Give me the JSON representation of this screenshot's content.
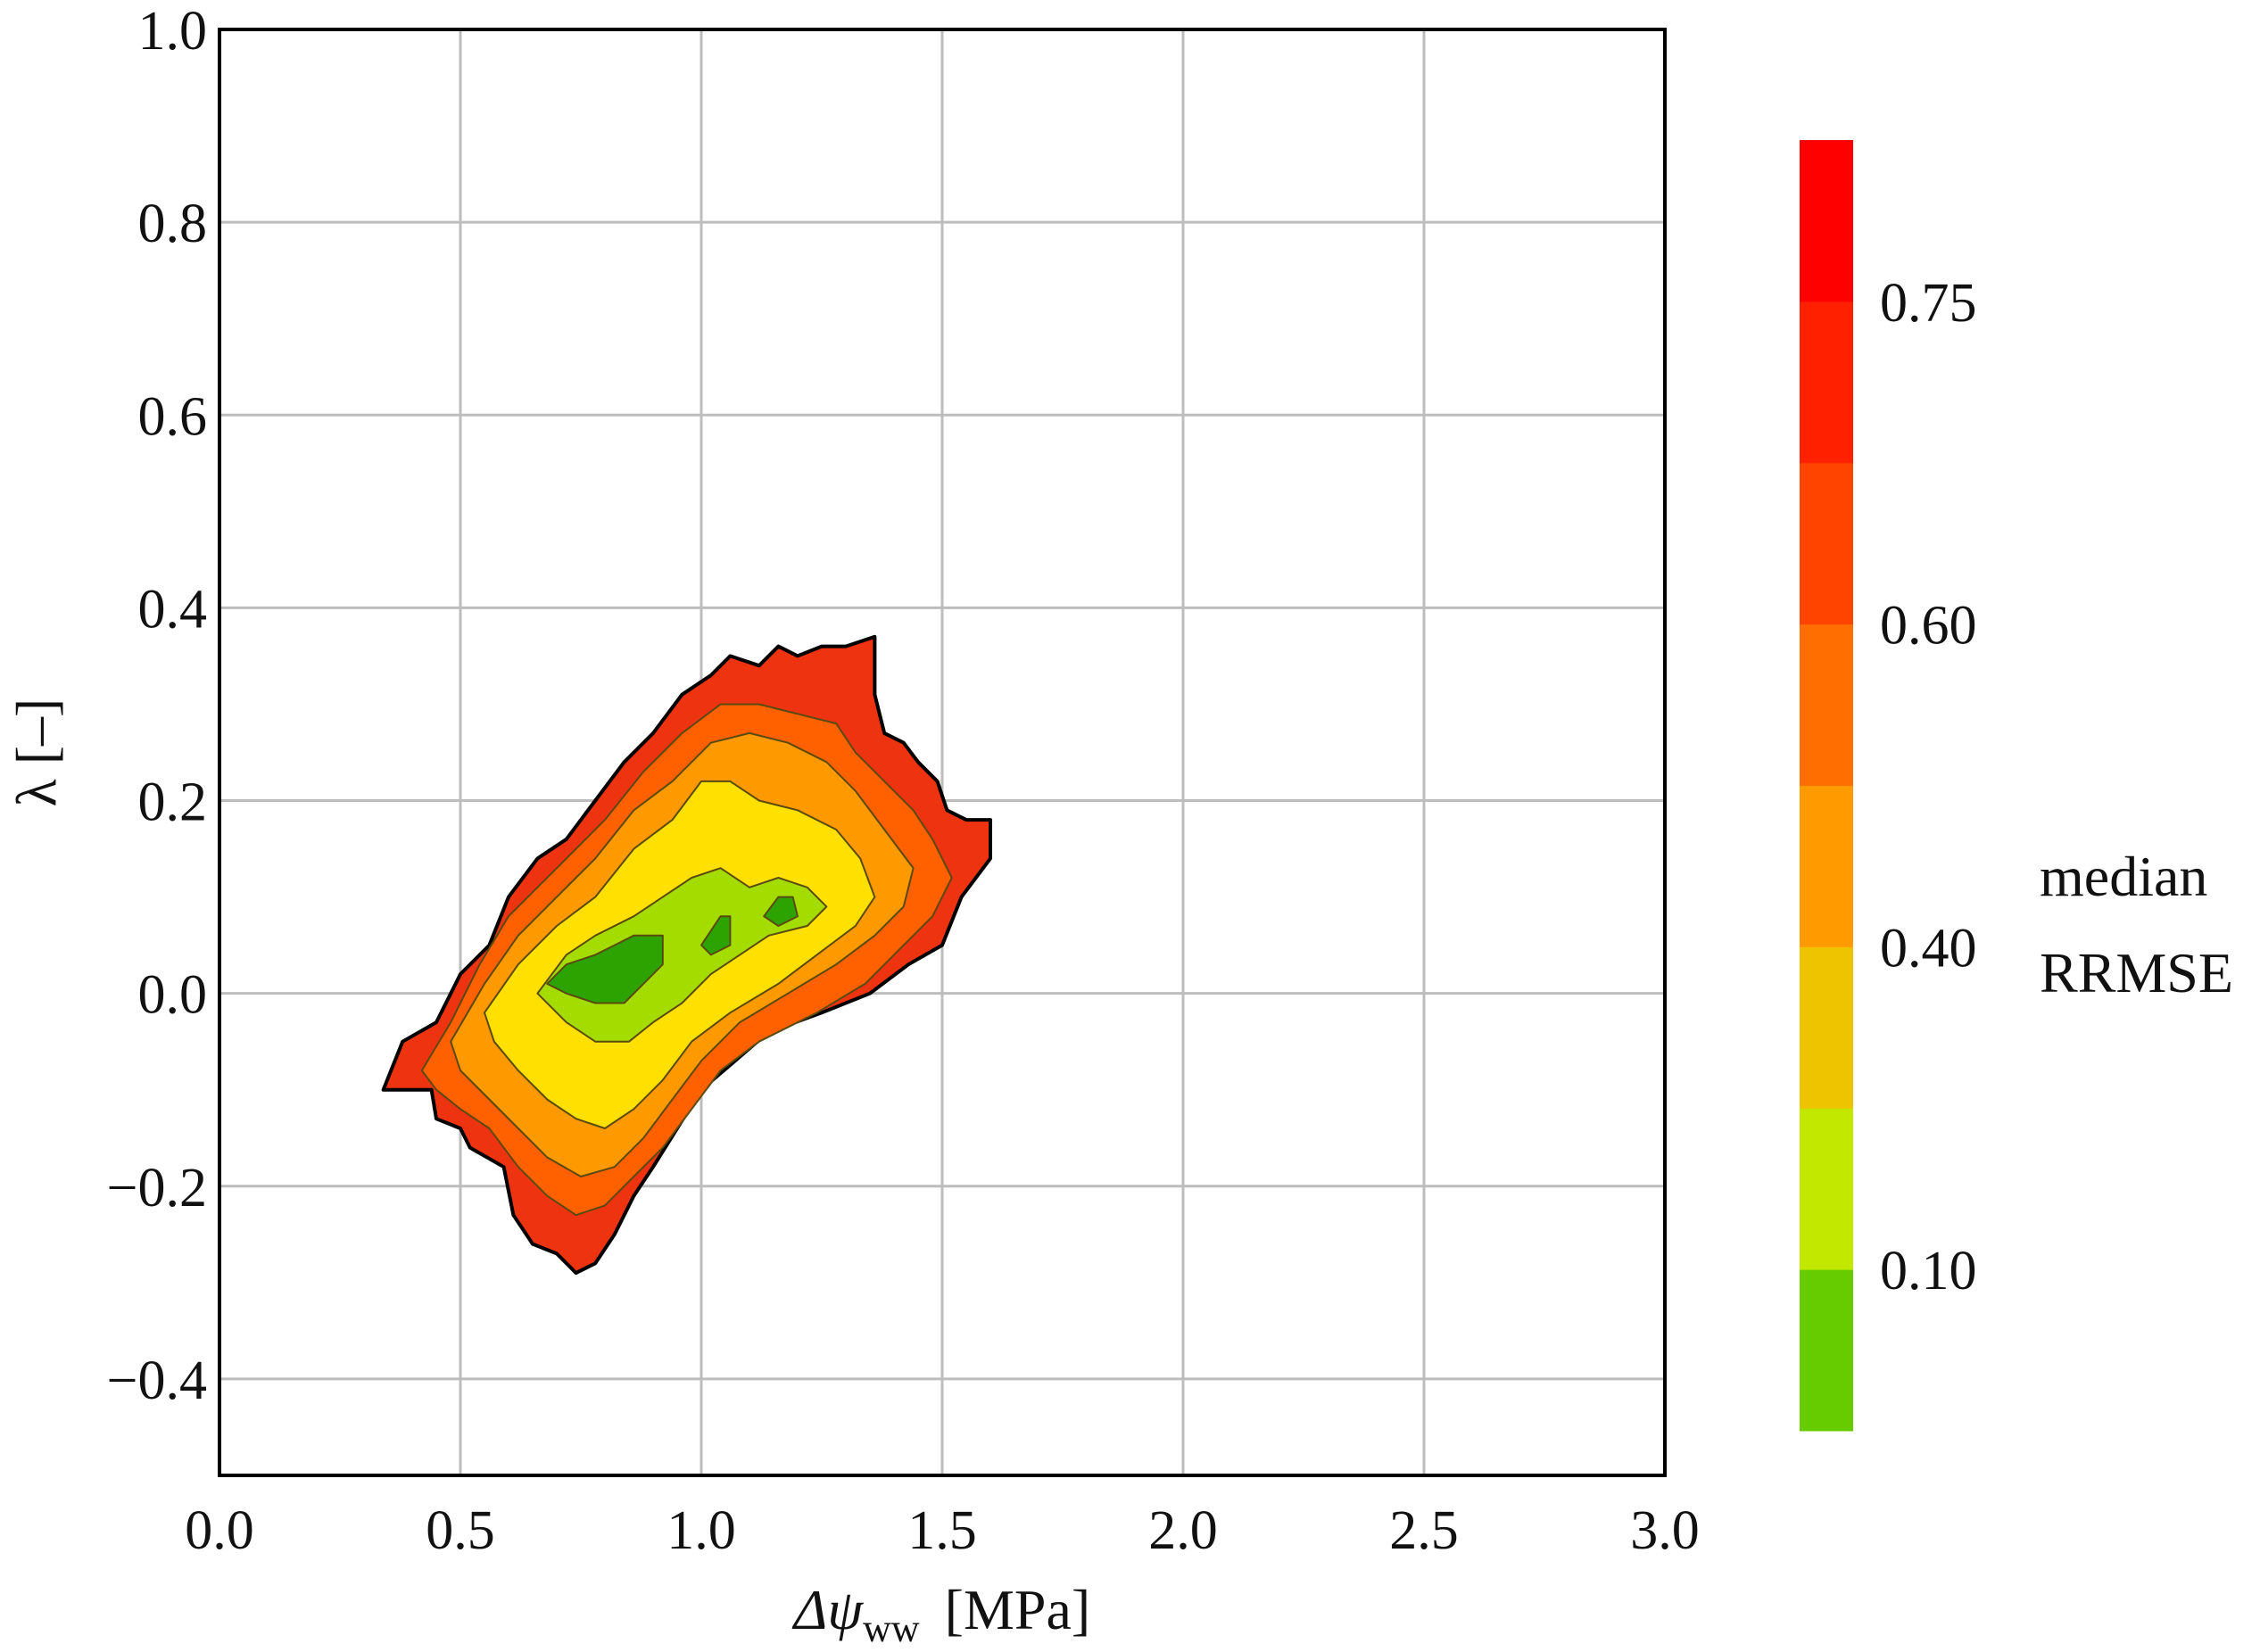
{
  "chart_data": {
    "type": "contour",
    "title": "",
    "xlabel_main": "Δψ",
    "xlabel_sub": "ww",
    "xlabel_unit": "[MPa]",
    "ylabel": "λ [–]",
    "xlim": [
      0.0,
      3.0
    ],
    "ylim": [
      -0.5,
      1.0
    ],
    "x_ticks": [
      0.0,
      0.5,
      1.0,
      1.5,
      2.0,
      2.5,
      3.0
    ],
    "x_tick_labels": [
      "0.0",
      "0.5",
      "1.0",
      "1.5",
      "2.0",
      "2.5",
      "3.0"
    ],
    "y_ticks": [
      -0.4,
      -0.2,
      0.0,
      0.2,
      0.4,
      0.6,
      0.8,
      1.0
    ],
    "y_tick_labels": [
      "−0.4",
      "−0.2",
      "0.0",
      "0.2",
      "0.4",
      "0.6",
      "0.8",
      "1.0"
    ],
    "grid": true,
    "colorbar": {
      "label_lines": [
        "median",
        "RRMSE"
      ],
      "tick_labels": [
        "0.10",
        "0.40",
        "0.60",
        "0.75"
      ],
      "bands": [
        {
          "color": "#66cc00"
        },
        {
          "color": "#c2e800"
        },
        {
          "color": "#eec300"
        },
        {
          "color": "#ff9a00"
        },
        {
          "color": "#ff6e00"
        },
        {
          "color": "#ff4400"
        },
        {
          "color": "#ff2000"
        },
        {
          "color": "#ff0000"
        }
      ]
    },
    "contour_regions": [
      {
        "level": "outer",
        "color": "#ee3311",
        "points": [
          [
            0.34,
            -0.1
          ],
          [
            0.38,
            -0.05
          ],
          [
            0.45,
            -0.03
          ],
          [
            0.5,
            0.02
          ],
          [
            0.56,
            0.05
          ],
          [
            0.6,
            0.1
          ],
          [
            0.66,
            0.14
          ],
          [
            0.72,
            0.16
          ],
          [
            0.78,
            0.2
          ],
          [
            0.84,
            0.24
          ],
          [
            0.9,
            0.27
          ],
          [
            0.96,
            0.31
          ],
          [
            1.02,
            0.33
          ],
          [
            1.06,
            0.35
          ],
          [
            1.12,
            0.34
          ],
          [
            1.16,
            0.36
          ],
          [
            1.2,
            0.35
          ],
          [
            1.25,
            0.36
          ],
          [
            1.3,
            0.36
          ],
          [
            1.36,
            0.37
          ],
          [
            1.36,
            0.31
          ],
          [
            1.38,
            0.27
          ],
          [
            1.42,
            0.26
          ],
          [
            1.45,
            0.24
          ],
          [
            1.49,
            0.22
          ],
          [
            1.51,
            0.19
          ],
          [
            1.55,
            0.18
          ],
          [
            1.6,
            0.18
          ],
          [
            1.6,
            0.14
          ],
          [
            1.54,
            0.1
          ],
          [
            1.5,
            0.05
          ],
          [
            1.43,
            0.03
          ],
          [
            1.35,
            0.0
          ],
          [
            1.25,
            -0.02
          ],
          [
            1.14,
            -0.04
          ],
          [
            1.07,
            -0.07
          ],
          [
            1.0,
            -0.1
          ],
          [
            0.95,
            -0.14
          ],
          [
            0.9,
            -0.18
          ],
          [
            0.86,
            -0.21
          ],
          [
            0.82,
            -0.25
          ],
          [
            0.78,
            -0.28
          ],
          [
            0.74,
            -0.29
          ],
          [
            0.7,
            -0.27
          ],
          [
            0.65,
            -0.26
          ],
          [
            0.61,
            -0.23
          ],
          [
            0.59,
            -0.18
          ],
          [
            0.52,
            -0.16
          ],
          [
            0.5,
            -0.14
          ],
          [
            0.45,
            -0.13
          ],
          [
            0.44,
            -0.1
          ],
          [
            0.4,
            -0.1
          ]
        ]
      },
      {
        "level": "0.60-0.75",
        "color": "#ff6000",
        "points": [
          [
            0.42,
            -0.08
          ],
          [
            0.48,
            -0.03
          ],
          [
            0.54,
            0.03
          ],
          [
            0.6,
            0.08
          ],
          [
            0.66,
            0.11
          ],
          [
            0.72,
            0.14
          ],
          [
            0.8,
            0.18
          ],
          [
            0.88,
            0.23
          ],
          [
            0.96,
            0.27
          ],
          [
            1.04,
            0.3
          ],
          [
            1.12,
            0.3
          ],
          [
            1.2,
            0.29
          ],
          [
            1.28,
            0.28
          ],
          [
            1.32,
            0.25
          ],
          [
            1.38,
            0.22
          ],
          [
            1.44,
            0.19
          ],
          [
            1.48,
            0.16
          ],
          [
            1.52,
            0.12
          ],
          [
            1.48,
            0.08
          ],
          [
            1.42,
            0.05
          ],
          [
            1.34,
            0.01
          ],
          [
            1.24,
            -0.02
          ],
          [
            1.12,
            -0.05
          ],
          [
            1.04,
            -0.08
          ],
          [
            0.98,
            -0.12
          ],
          [
            0.92,
            -0.16
          ],
          [
            0.86,
            -0.19
          ],
          [
            0.8,
            -0.22
          ],
          [
            0.74,
            -0.23
          ],
          [
            0.68,
            -0.21
          ],
          [
            0.62,
            -0.18
          ],
          [
            0.56,
            -0.14
          ],
          [
            0.5,
            -0.12
          ],
          [
            0.45,
            -0.1
          ]
        ]
      },
      {
        "level": "0.40-0.60",
        "color": "#ff9900",
        "points": [
          [
            0.48,
            -0.05
          ],
          [
            0.55,
            0.01
          ],
          [
            0.62,
            0.06
          ],
          [
            0.7,
            0.1
          ],
          [
            0.78,
            0.14
          ],
          [
            0.86,
            0.19
          ],
          [
            0.94,
            0.22
          ],
          [
            1.02,
            0.26
          ],
          [
            1.1,
            0.27
          ],
          [
            1.18,
            0.26
          ],
          [
            1.26,
            0.24
          ],
          [
            1.32,
            0.21
          ],
          [
            1.38,
            0.17
          ],
          [
            1.44,
            0.13
          ],
          [
            1.42,
            0.09
          ],
          [
            1.36,
            0.06
          ],
          [
            1.28,
            0.03
          ],
          [
            1.18,
            0.0
          ],
          [
            1.08,
            -0.03
          ],
          [
            1.0,
            -0.07
          ],
          [
            0.94,
            -0.11
          ],
          [
            0.88,
            -0.15
          ],
          [
            0.82,
            -0.18
          ],
          [
            0.75,
            -0.19
          ],
          [
            0.68,
            -0.17
          ],
          [
            0.62,
            -0.14
          ],
          [
            0.56,
            -0.11
          ],
          [
            0.5,
            -0.08
          ]
        ]
      },
      {
        "level": "0.10-0.40",
        "color": "#ffe000",
        "points": [
          [
            0.55,
            -0.02
          ],
          [
            0.62,
            0.03
          ],
          [
            0.7,
            0.07
          ],
          [
            0.78,
            0.1
          ],
          [
            0.86,
            0.15
          ],
          [
            0.94,
            0.18
          ],
          [
            1.0,
            0.22
          ],
          [
            1.06,
            0.22
          ],
          [
            1.12,
            0.2
          ],
          [
            1.2,
            0.19
          ],
          [
            1.28,
            0.17
          ],
          [
            1.33,
            0.14
          ],
          [
            1.36,
            0.1
          ],
          [
            1.32,
            0.07
          ],
          [
            1.24,
            0.04
          ],
          [
            1.16,
            0.01
          ],
          [
            1.06,
            -0.02
          ],
          [
            0.98,
            -0.05
          ],
          [
            0.92,
            -0.09
          ],
          [
            0.86,
            -0.12
          ],
          [
            0.8,
            -0.14
          ],
          [
            0.74,
            -0.13
          ],
          [
            0.68,
            -0.11
          ],
          [
            0.62,
            -0.08
          ],
          [
            0.57,
            -0.05
          ]
        ]
      },
      {
        "level": "<0.10",
        "color": "#a5dc00",
        "points": [
          [
            0.66,
            0.0
          ],
          [
            0.72,
            0.04
          ],
          [
            0.78,
            0.06
          ],
          [
            0.86,
            0.08
          ],
          [
            0.92,
            0.1
          ],
          [
            0.98,
            0.12
          ],
          [
            1.04,
            0.13
          ],
          [
            1.1,
            0.11
          ],
          [
            1.16,
            0.12
          ],
          [
            1.22,
            0.11
          ],
          [
            1.26,
            0.09
          ],
          [
            1.22,
            0.07
          ],
          [
            1.14,
            0.06
          ],
          [
            1.08,
            0.04
          ],
          [
            1.02,
            0.02
          ],
          [
            0.96,
            -0.01
          ],
          [
            0.9,
            -0.03
          ],
          [
            0.85,
            -0.05
          ],
          [
            0.78,
            -0.05
          ],
          [
            0.72,
            -0.03
          ]
        ]
      },
      {
        "level": "min-a",
        "color": "#2ca300",
        "points": [
          [
            0.68,
            0.01
          ],
          [
            0.72,
            0.03
          ],
          [
            0.78,
            0.04
          ],
          [
            0.82,
            0.05
          ],
          [
            0.86,
            0.06
          ],
          [
            0.92,
            0.06
          ],
          [
            0.92,
            0.03
          ],
          [
            0.88,
            0.01
          ],
          [
            0.84,
            -0.01
          ],
          [
            0.78,
            -0.01
          ],
          [
            0.72,
            0.0
          ]
        ]
      },
      {
        "level": "min-b",
        "color": "#2ca300",
        "points": [
          [
            1.0,
            0.05
          ],
          [
            1.04,
            0.08
          ],
          [
            1.06,
            0.08
          ],
          [
            1.06,
            0.05
          ],
          [
            1.02,
            0.04
          ]
        ]
      },
      {
        "level": "min-c",
        "color": "#2ca300",
        "points": [
          [
            1.13,
            0.08
          ],
          [
            1.16,
            0.1
          ],
          [
            1.19,
            0.1
          ],
          [
            1.2,
            0.08
          ],
          [
            1.16,
            0.07
          ]
        ]
      }
    ]
  }
}
